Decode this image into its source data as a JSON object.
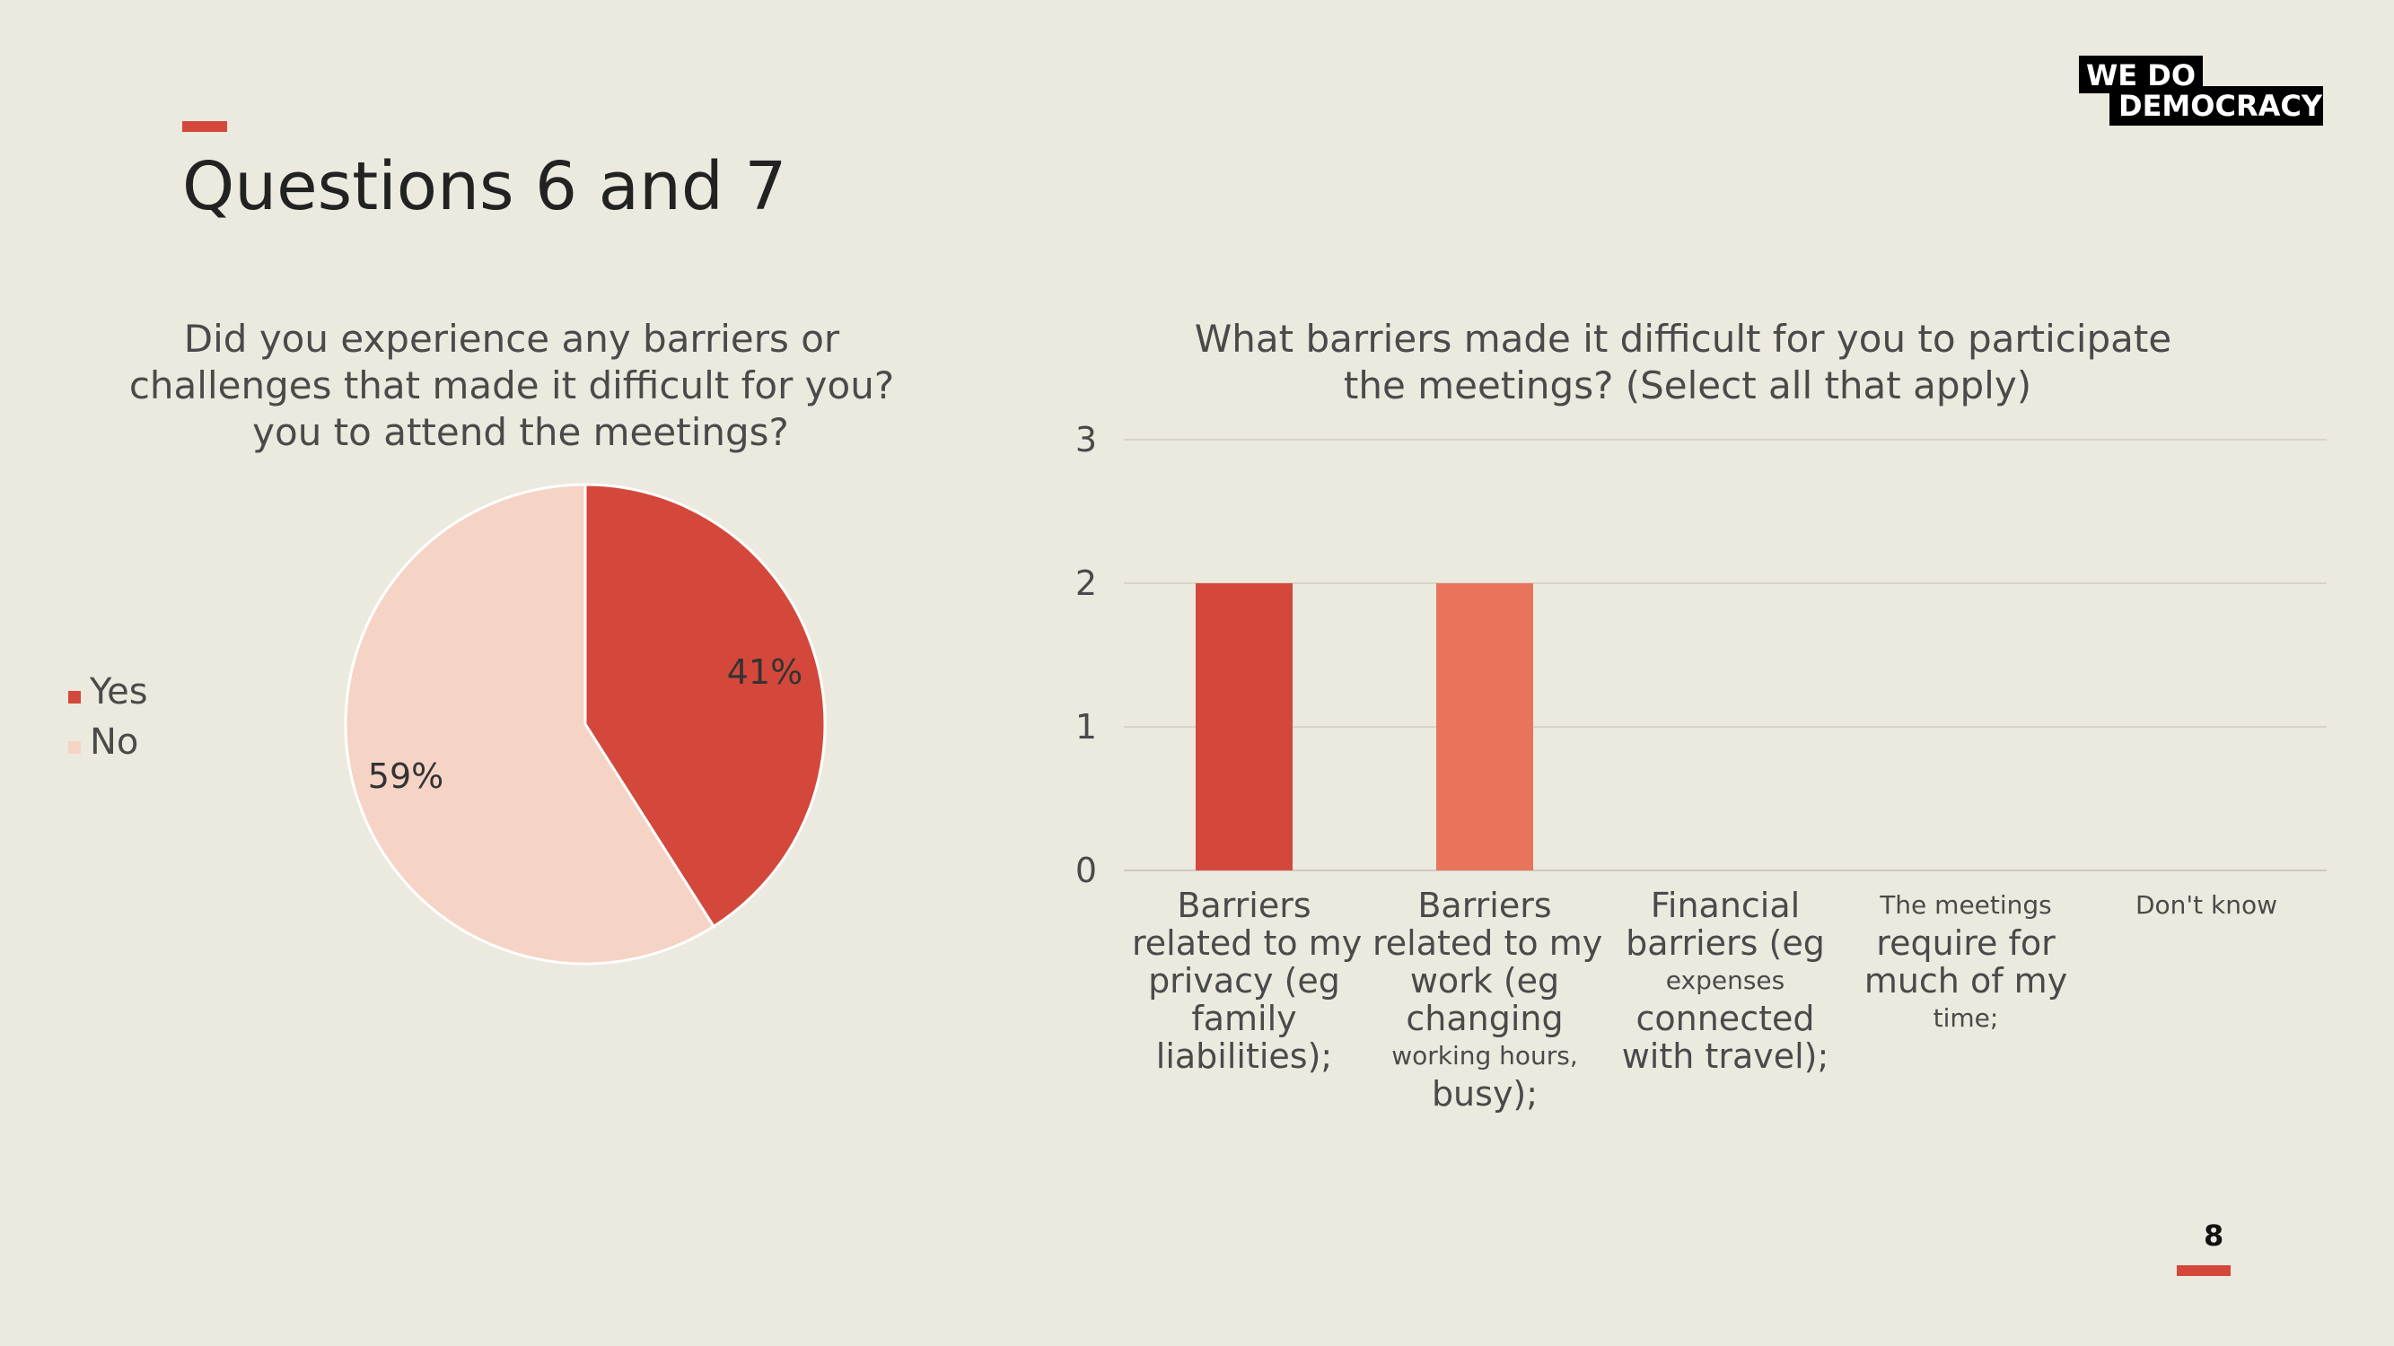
{
  "slide": {
    "title": "Questions 6 and 7",
    "page_number": "8",
    "accent_color": "#D4483B",
    "background_color": "#ECE9DF"
  },
  "logo": {
    "line1": "WE  DO",
    "line2": "DEMOCRACY"
  },
  "chart_data": [
    {
      "type": "pie",
      "title_lines": [
        "Did you experience any barriers or",
        "challenges that made it difficult for you?",
        "you to attend the meetings?"
      ],
      "labels": [
        "Yes",
        "No"
      ],
      "values": [
        41,
        59
      ],
      "data_labels": [
        "41%",
        "59%"
      ],
      "colors": [
        "#D4483B",
        "#F5D3C5"
      ],
      "legend": "left"
    },
    {
      "type": "bar",
      "title_lines": [
        "What barriers made it difficult for you to participate",
        "the meetings? (Select all that apply)"
      ],
      "categories": [
        "Barriers related to my privacy (eg family liabilities);",
        "Barriers related to my work (eg changing working hours, busy);",
        "Financial barriers (eg expenses connected with travel);",
        "The meetings require for much of my time;",
        "Don't know"
      ],
      "category_lines": [
        [
          {
            "t": "Barriers"
          },
          {
            "t": "related to my"
          },
          {
            "t": "privacy (eg"
          },
          {
            "t": "family"
          },
          {
            "t": "liabilities);"
          }
        ],
        [
          {
            "t": "Barriers"
          },
          {
            "t": "related to my"
          },
          {
            "t": "work (eg"
          },
          {
            "t": "changing"
          },
          {
            "t": "working hours,",
            "small": true
          },
          {
            "t": "busy);"
          }
        ],
        [
          {
            "t": "Financial"
          },
          {
            "t": "barriers (eg"
          },
          {
            "t": "expenses",
            "small": true
          },
          {
            "t": "connected"
          },
          {
            "t": "with travel);"
          }
        ],
        [
          {
            "t": "The meetings",
            "small": true
          },
          {
            "t": "require for"
          },
          {
            "t": "much of my"
          },
          {
            "t": "time;",
            "small": true
          }
        ],
        [
          {
            "t": "Don't know",
            "small": true
          }
        ]
      ],
      "values": [
        2,
        2,
        0,
        0,
        0
      ],
      "colors": [
        "#D4483B",
        "#E8745C",
        "#D4483B",
        "#D4483B",
        "#D4483B"
      ],
      "ylim": [
        0,
        3
      ],
      "yticks": [
        "0",
        "1",
        "2",
        "3"
      ],
      "grid": true
    }
  ]
}
